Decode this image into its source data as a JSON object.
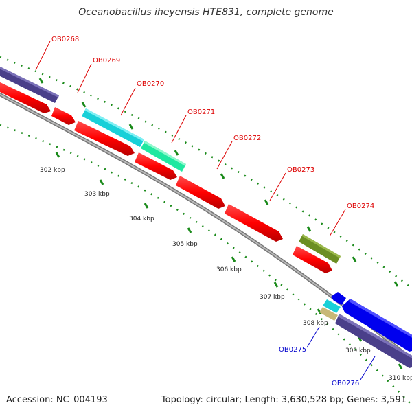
{
  "title": "Oceanobacillus iheyensis HTE831, complete genome",
  "footer": {
    "accession": "Accession: NC_004193",
    "summary": "Topology: circular; Length: 3,630,528 bp; Genes: 3,591"
  },
  "colors": {
    "red_strand": "#ff0000",
    "backbone": "#888888",
    "tick": "#1a8a1a",
    "label_red": "#dd0000",
    "label_blue": "#0000cc",
    "purple": "#4a3f8a",
    "cyan": "#19d0d8",
    "teal": "#1fe8a0",
    "olive": "#6b8e23",
    "blue": "#0000ee",
    "tan": "#c8b878"
  },
  "ticks": [
    {
      "label": "302 kbp"
    },
    {
      "label": "303 kbp"
    },
    {
      "label": "304 kbp"
    },
    {
      "label": "305 kbp"
    },
    {
      "label": "306 kbp"
    },
    {
      "label": "307 kbp"
    },
    {
      "label": "308 kbp"
    },
    {
      "label": "309 kbp"
    },
    {
      "label": "310 kbp"
    }
  ],
  "gene_labels": [
    {
      "text": "OB0268",
      "color": "#dd0000"
    },
    {
      "text": "OB0269",
      "color": "#dd0000"
    },
    {
      "text": "OB0270",
      "color": "#dd0000"
    },
    {
      "text": "OB0271",
      "color": "#dd0000"
    },
    {
      "text": "OB0272",
      "color": "#dd0000"
    },
    {
      "text": "OB0273",
      "color": "#dd0000"
    },
    {
      "text": "OB0274",
      "color": "#dd0000"
    },
    {
      "text": "OB0275",
      "color": "#0000cc"
    },
    {
      "text": "OB0276",
      "color": "#0000cc"
    }
  ]
}
